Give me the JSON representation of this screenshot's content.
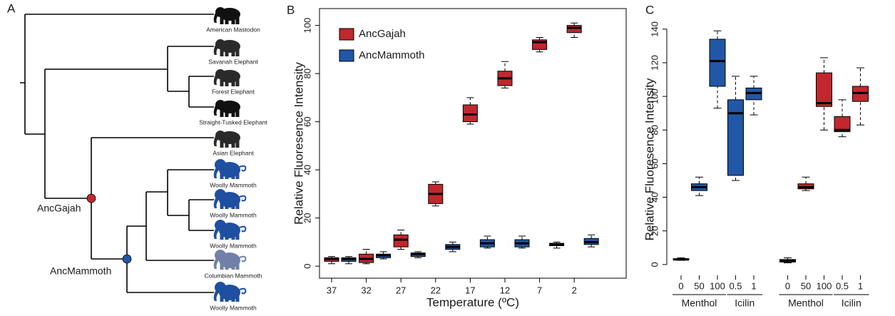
{
  "panel_labels": [
    "A",
    "B",
    "C"
  ],
  "tree": {
    "leaves": [
      {
        "label": "American Mastodon",
        "color": "#111111"
      },
      {
        "label": "Savanah Elephant",
        "color": "#2a2a2a"
      },
      {
        "label": "Forest Elephant",
        "color": "#2a2a2a"
      },
      {
        "label": "Straight-Tusked Elephant",
        "color": "#111111"
      },
      {
        "label": "Asian Elephant",
        "color": "#2a2a2a"
      },
      {
        "label": "Woolly Mammoth",
        "color": "#1f4fa0"
      },
      {
        "label": "Woolly Mammoth",
        "color": "#1f4fa0"
      },
      {
        "label": "Woolly Mammoth",
        "color": "#1f4fa0"
      },
      {
        "label": "Columbian Mammoth",
        "color": "#7080a8"
      },
      {
        "label": "Woolly Mammoth",
        "color": "#1f4fa0"
      }
    ],
    "nodes": [
      {
        "label": "AncGajah",
        "color": "#c1272d"
      },
      {
        "label": "AncMammoth",
        "color": "#2057a7"
      }
    ]
  },
  "chart_data": [
    {
      "type": "box",
      "y_label": "Relative Fluoresence Intensity",
      "x_label": "Temperature (ºC)",
      "categories": [
        "37",
        "32",
        "27",
        "22",
        "17",
        "12",
        "7",
        "2"
      ],
      "ylim": [
        -5,
        107
      ],
      "yticks": [
        0,
        20,
        40,
        60,
        80,
        100
      ],
      "legend": "upper left",
      "series": [
        {
          "name": "AncGajah",
          "color": "#c1272d",
          "values": [
            [
              1,
              2,
              3,
              3.5,
              4
            ],
            [
              1,
              1.5,
              3,
              5,
              7
            ],
            [
              7,
              8,
              11,
              13,
              15
            ],
            [
              25,
              26,
              30,
              34,
              35
            ],
            [
              59,
              60,
              63,
              67,
              70
            ],
            [
              74,
              75,
              78,
              81,
              85
            ],
            [
              89,
              90,
              93,
              94,
              95
            ],
            [
              95,
              97,
              99,
              100,
              101
            ]
          ]
        },
        {
          "name": "AncMammoth",
          "color": "#2057a7",
          "values": [
            [
              1,
              2,
              3,
              3.5,
              4
            ],
            [
              3,
              3.5,
              4.5,
              5,
              6
            ],
            [
              3.5,
              4,
              5,
              5.5,
              6
            ],
            [
              6,
              7,
              8,
              9,
              10
            ],
            [
              7.5,
              8,
              9.5,
              11,
              12.5
            ],
            [
              7.5,
              8,
              9.5,
              11,
              12.5
            ],
            [
              7.5,
              8.5,
              9,
              9.5,
              10
            ],
            [
              8,
              9,
              10,
              11.5,
              13
            ]
          ]
        }
      ]
    },
    {
      "type": "box",
      "y_label": "Relative Fluoresence Intensity",
      "groups": [
        {
          "name": "Menthol",
          "categories": [
            "0",
            "50",
            "100"
          ]
        },
        {
          "name": "Icilin",
          "categories": [
            "0.5",
            "1"
          ]
        },
        {
          "name": "Menthol",
          "categories": [
            "0",
            "50",
            "100"
          ]
        },
        {
          "name": "Icilin",
          "categories": [
            "0.5",
            "1"
          ]
        }
      ],
      "ylim": [
        -6,
        148
      ],
      "yticks": [
        0,
        20,
        40,
        60,
        80,
        100,
        120,
        140
      ],
      "series": [
        {
          "color": "#1a1a1a",
          "values": [
            [
              2.5,
              3,
              3,
              3.5,
              4
            ],
            null,
            null,
            null,
            null,
            [
              1,
              1.5,
              2,
              3,
              4
            ],
            null,
            null,
            null,
            null
          ]
        },
        {
          "color": "#2057a7",
          "values": [
            null,
            [
              41,
              44,
              46,
              48,
              52
            ],
            [
              93,
              106,
              121,
              134,
              139
            ],
            [
              50,
              53,
              90,
              98,
              112
            ],
            [
              89,
              98,
              102,
              105,
              112
            ],
            null,
            null,
            null,
            null,
            null
          ]
        },
        {
          "color": "#c1272d",
          "values": [
            null,
            null,
            null,
            null,
            null,
            null,
            [
              44,
              45,
              46,
              48,
              52
            ],
            [
              80,
              94,
              96,
              114,
              123
            ],
            [
              76,
              79,
              80,
              88,
              98
            ],
            [
              83,
              97,
              102,
              106,
              117
            ]
          ]
        }
      ]
    }
  ]
}
